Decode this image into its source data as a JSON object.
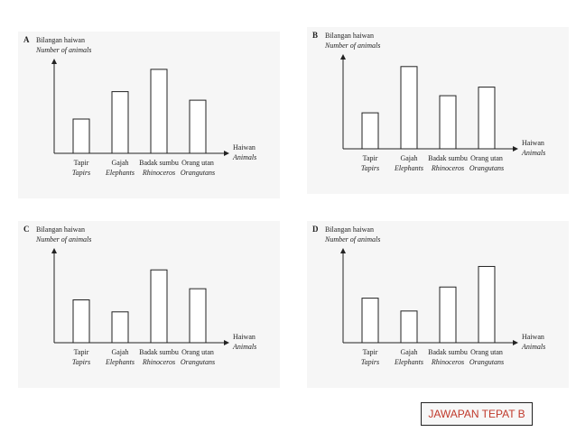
{
  "chart_data": [
    {
      "type": "bar",
      "label": "A",
      "y_label": "Bilangan haiwan",
      "y_label_en": "Number of animals",
      "x_label": "Haiwan",
      "x_label_en": "Animals",
      "categories": [
        "Tapir",
        "Gajah",
        "Badak sumbu",
        "Orang utan"
      ],
      "categories_en": [
        "Tapirs",
        "Elephants",
        "Rhinoceros",
        "Orangutans"
      ],
      "values": [
        40,
        72,
        98,
        62
      ],
      "color": "#ffffff",
      "ylim": [
        0,
        100
      ]
    },
    {
      "type": "bar",
      "label": "B",
      "y_label": "Bilangan haiwan",
      "y_label_en": "Number of animals",
      "x_label": "Haiwan",
      "x_label_en": "Animals",
      "categories": [
        "Tapir",
        "Gajah",
        "Badak sumbu",
        "Orang utan"
      ],
      "categories_en": [
        "Tapirs",
        "Elephants",
        "Rhinoceros",
        "Orangutans"
      ],
      "values": [
        42,
        96,
        62,
        72
      ],
      "color": "#ffffff",
      "ylim": [
        0,
        100
      ]
    },
    {
      "type": "bar",
      "label": "C",
      "y_label": "Bilangan haiwan",
      "y_label_en": "Number of animals",
      "x_label": "Haiwan",
      "x_label_en": "Animals",
      "categories": [
        "Tapir",
        "Gajah",
        "Badak sumbu",
        "Orang utan"
      ],
      "categories_en": [
        "Tapirs",
        "Elephants",
        "Rhinoceros",
        "Orangutans"
      ],
      "values": [
        50,
        36,
        85,
        63
      ],
      "color": "#ffffff",
      "ylim": [
        0,
        100
      ]
    },
    {
      "type": "bar",
      "label": "D",
      "y_label": "Bilangan haiwan",
      "y_label_en": "Number of animals",
      "x_label": "Haiwan",
      "x_label_en": "Animals",
      "categories": [
        "Tapir",
        "Gajah",
        "Badak sumbu",
        "Orang utan"
      ],
      "categories_en": [
        "Tapirs",
        "Elephants",
        "Rhinoceros",
        "Orangutans"
      ],
      "values": [
        52,
        37,
        65,
        89
      ],
      "color": "#ffffff",
      "ylim": [
        0,
        100
      ]
    }
  ],
  "answer": "JAWAPAN TEPAT B"
}
